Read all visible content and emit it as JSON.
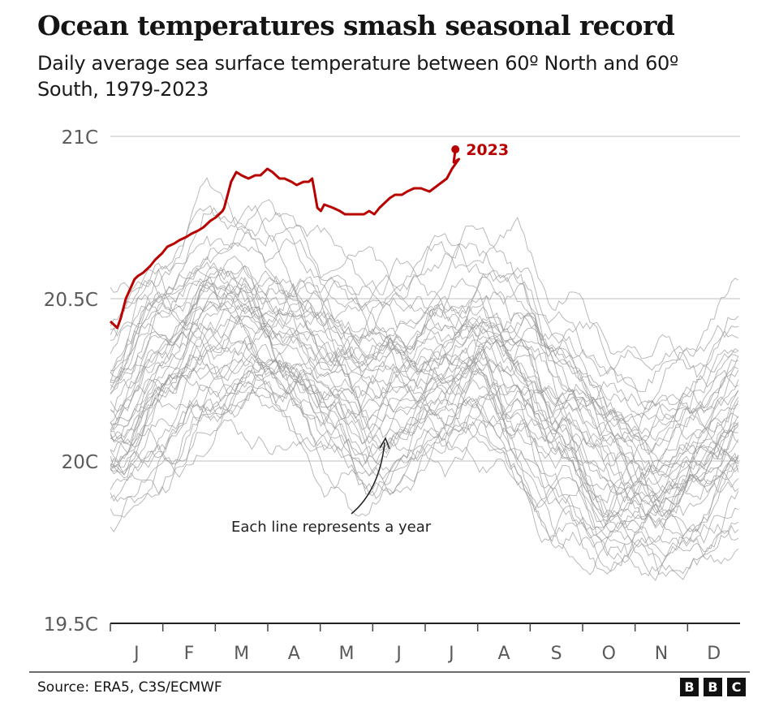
{
  "header": {
    "title": "Ocean temperatures smash seasonal record",
    "subtitle": "Daily average sea surface temperature between 60º North and 60º South, 1979-2023"
  },
  "footer": {
    "source": "Source: ERA5, C3S/ECMWF",
    "logo_letters": [
      "B",
      "B",
      "C"
    ]
  },
  "chart_data": {
    "type": "line",
    "title": "Ocean temperatures smash seasonal record",
    "subtitle": "Daily average sea surface temperature between 60º North and 60º South, 1979-2023",
    "xlabel": "",
    "ylabel": "",
    "x_unit": "day of year",
    "xlim": [
      0,
      365
    ],
    "ylim": [
      19.5,
      21.0
    ],
    "y_ticks": [
      {
        "value": 21.0,
        "label": "21C"
      },
      {
        "value": 20.5,
        "label": "20.5C"
      },
      {
        "value": 20.0,
        "label": "20C"
      },
      {
        "value": 19.5,
        "label": "19.5C"
      }
    ],
    "x_ticks": [
      {
        "label": "J",
        "day": 0
      },
      {
        "label": "F",
        "day": 31
      },
      {
        "label": "M",
        "day": 59
      },
      {
        "label": "A",
        "day": 90
      },
      {
        "label": "M",
        "day": 120
      },
      {
        "label": "J",
        "day": 151
      },
      {
        "label": "J",
        "day": 181
      },
      {
        "label": "A",
        "day": 212
      },
      {
        "label": "S",
        "day": 243
      },
      {
        "label": "O",
        "day": 273
      },
      {
        "label": "N",
        "day": 304
      },
      {
        "label": "D",
        "day": 334
      }
    ],
    "grid": true,
    "annotation": "Each line represents a year",
    "highlight": {
      "name": "2023",
      "label": "2023",
      "color": "#b80000",
      "points": [
        [
          0,
          20.43
        ],
        [
          2,
          20.42
        ],
        [
          4,
          20.41
        ],
        [
          6,
          20.44
        ],
        [
          9,
          20.5
        ],
        [
          14,
          20.56
        ],
        [
          16,
          20.57
        ],
        [
          19,
          20.58
        ],
        [
          23,
          20.6
        ],
        [
          26,
          20.62
        ],
        [
          30,
          20.64
        ],
        [
          33,
          20.66
        ],
        [
          37,
          20.67
        ],
        [
          40,
          20.68
        ],
        [
          44,
          20.69
        ],
        [
          47,
          20.7
        ],
        [
          51,
          20.71
        ],
        [
          54,
          20.72
        ],
        [
          58,
          20.74
        ],
        [
          61,
          20.75
        ],
        [
          65,
          20.77
        ],
        [
          66,
          20.78
        ],
        [
          69,
          20.84
        ],
        [
          70,
          20.86
        ],
        [
          73,
          20.89
        ],
        [
          76,
          20.88
        ],
        [
          80,
          20.87
        ],
        [
          84,
          20.88
        ],
        [
          87,
          20.88
        ],
        [
          91,
          20.9
        ],
        [
          94,
          20.89
        ],
        [
          98,
          20.87
        ],
        [
          101,
          20.87
        ],
        [
          105,
          20.86
        ],
        [
          108,
          20.85
        ],
        [
          112,
          20.86
        ],
        [
          115,
          20.86
        ],
        [
          117,
          20.87
        ],
        [
          118,
          20.84
        ],
        [
          120,
          20.78
        ],
        [
          122,
          20.77
        ],
        [
          124,
          20.79
        ],
        [
          129,
          20.78
        ],
        [
          133,
          20.77
        ],
        [
          136,
          20.76
        ],
        [
          140,
          20.76
        ],
        [
          143,
          20.76
        ],
        [
          147,
          20.76
        ],
        [
          150,
          20.77
        ],
        [
          153,
          20.76
        ],
        [
          156,
          20.78
        ],
        [
          162,
          20.81
        ],
        [
          165,
          20.82
        ],
        [
          169,
          20.82
        ],
        [
          172,
          20.83
        ],
        [
          176,
          20.84
        ],
        [
          180,
          20.84
        ],
        [
          185,
          20.83
        ],
        [
          190,
          20.85
        ],
        [
          195,
          20.87
        ],
        [
          198,
          20.9
        ],
        [
          202,
          20.93
        ],
        [
          199,
          20.92
        ],
        [
          200,
          20.96
        ]
      ]
    },
    "background_series": {
      "years": [
        1979,
        2022
      ],
      "count": 44,
      "color": "#9a9a9a",
      "seasonal_envelope": [
        [
          0,
          20.15
        ],
        [
          30,
          20.3
        ],
        [
          60,
          20.43
        ],
        [
          80,
          20.45
        ],
        [
          105,
          20.4
        ],
        [
          130,
          20.3
        ],
        [
          150,
          20.23
        ],
        [
          170,
          20.25
        ],
        [
          190,
          20.3
        ],
        [
          215,
          20.36
        ],
        [
          235,
          20.28
        ],
        [
          260,
          20.12
        ],
        [
          290,
          20.0
        ],
        [
          315,
          19.97
        ],
        [
          340,
          20.03
        ],
        [
          365,
          20.12
        ]
      ],
      "year_offset_range": [
        -0.32,
        0.28
      ]
    }
  }
}
